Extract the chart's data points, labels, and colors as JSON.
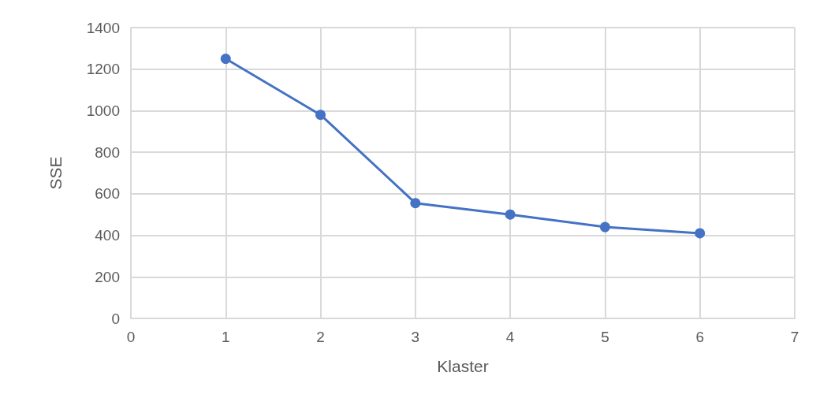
{
  "chart_data": {
    "type": "line",
    "xlabel": "Klaster",
    "ylabel": "SSE",
    "x": [
      1,
      2,
      3,
      4,
      5,
      6
    ],
    "series": [
      {
        "color": "#4472c4",
        "values": [
          1250,
          980,
          555,
          500,
          440,
          410
        ]
      }
    ],
    "xlim": [
      0,
      7
    ],
    "xticks": [
      0,
      1,
      2,
      3,
      4,
      5,
      6,
      7
    ],
    "ylim": [
      0,
      1400
    ],
    "yticks": [
      0,
      200,
      400,
      600,
      800,
      1000,
      1200,
      1400
    ],
    "grid": true,
    "marker": "circle",
    "line_style": "solid"
  }
}
